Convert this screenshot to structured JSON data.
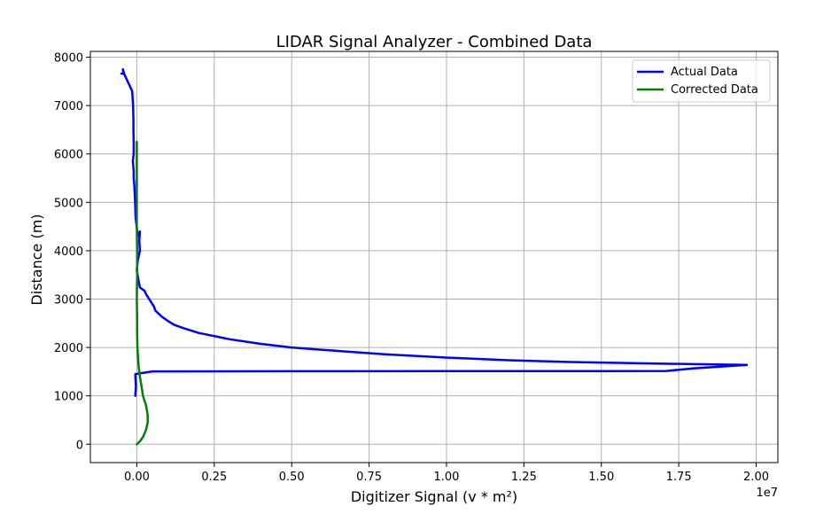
{
  "chart_data": {
    "type": "line",
    "title": "LIDAR Signal Analyzer - Combined Data",
    "xlabel": "Digitizer Signal (v * m²)",
    "ylabel": "Distance (m)",
    "x_offset_label": "1e7",
    "x_scale": 10000000,
    "xlim": [
      -0.15,
      2.07
    ],
    "ylim": [
      -380,
      8120
    ],
    "x_ticks": [
      0.0,
      0.25,
      0.5,
      0.75,
      1.0,
      1.25,
      1.5,
      1.75,
      2.0
    ],
    "x_tick_labels": [
      "0.00",
      "0.25",
      "0.50",
      "0.75",
      "1.00",
      "1.25",
      "1.50",
      "1.75",
      "2.00"
    ],
    "y_ticks": [
      0,
      1000,
      2000,
      3000,
      4000,
      5000,
      6000,
      7000,
      8000
    ],
    "y_tick_labels": [
      "0",
      "1000",
      "2000",
      "3000",
      "4000",
      "5000",
      "6000",
      "7000",
      "8000"
    ],
    "grid": true,
    "legend_position": "upper-right",
    "series": [
      {
        "name": "Actual Data",
        "color": "#0000ff",
        "points": [
          [
            -0.005,
            1000
          ],
          [
            -0.003,
            1200
          ],
          [
            -0.005,
            1450
          ],
          [
            0.05,
            1505
          ],
          [
            0.5,
            1508
          ],
          [
            1.0,
            1510
          ],
          [
            1.5,
            1512
          ],
          [
            1.71,
            1515
          ],
          [
            1.8,
            1570
          ],
          [
            1.97,
            1640
          ],
          [
            1.8,
            1655
          ],
          [
            1.6,
            1675
          ],
          [
            1.4,
            1700
          ],
          [
            1.2,
            1735
          ],
          [
            1.0,
            1790
          ],
          [
            0.8,
            1860
          ],
          [
            0.6,
            1950
          ],
          [
            0.5,
            2000
          ],
          [
            0.4,
            2075
          ],
          [
            0.3,
            2170
          ],
          [
            0.2,
            2300
          ],
          [
            0.15,
            2400
          ],
          [
            0.12,
            2470
          ],
          [
            0.1,
            2550
          ],
          [
            0.08,
            2640
          ],
          [
            0.06,
            2760
          ],
          [
            0.055,
            2850
          ],
          [
            0.04,
            3000
          ],
          [
            0.03,
            3100
          ],
          [
            0.025,
            3170
          ],
          [
            0.01,
            3240
          ],
          [
            0.005,
            3400
          ],
          [
            0.0,
            3600
          ],
          [
            0.003,
            3800
          ],
          [
            0.01,
            4000
          ],
          [
            0.008,
            4200
          ],
          [
            0.01,
            4400
          ],
          [
            0.003,
            4300
          ],
          [
            -0.004,
            4700
          ],
          [
            -0.005,
            4900
          ],
          [
            -0.006,
            5100
          ],
          [
            -0.008,
            5350
          ],
          [
            -0.01,
            5500
          ],
          [
            -0.01,
            5650
          ],
          [
            -0.013,
            5850
          ],
          [
            -0.01,
            6000
          ],
          [
            -0.01,
            6200
          ],
          [
            -0.011,
            6500
          ],
          [
            -0.011,
            6700
          ],
          [
            -0.012,
            7000
          ],
          [
            -0.015,
            7300
          ],
          [
            -0.04,
            7640
          ],
          [
            -0.045,
            7750
          ],
          [
            -0.044,
            7660
          ],
          [
            -0.05,
            7660
          ]
        ]
      },
      {
        "name": "Corrected Data",
        "color": "#008000",
        "points": [
          [
            0.0,
            0
          ],
          [
            0.01,
            60
          ],
          [
            0.02,
            150
          ],
          [
            0.03,
            300
          ],
          [
            0.035,
            450
          ],
          [
            0.035,
            600
          ],
          [
            0.03,
            800
          ],
          [
            0.02,
            1000
          ],
          [
            0.015,
            1200
          ],
          [
            0.01,
            1400
          ],
          [
            0.006,
            1600
          ],
          [
            0.004,
            1800
          ],
          [
            0.002,
            2000
          ],
          [
            0.001,
            2300
          ],
          [
            0.001,
            2600
          ],
          [
            0.0,
            3000
          ],
          [
            0.001,
            3500
          ],
          [
            0.001,
            4000
          ],
          [
            0.0,
            4500
          ],
          [
            0.0,
            5000
          ],
          [
            0.0,
            5500
          ],
          [
            0.0,
            6000
          ],
          [
            0.0,
            6250
          ]
        ]
      }
    ]
  }
}
